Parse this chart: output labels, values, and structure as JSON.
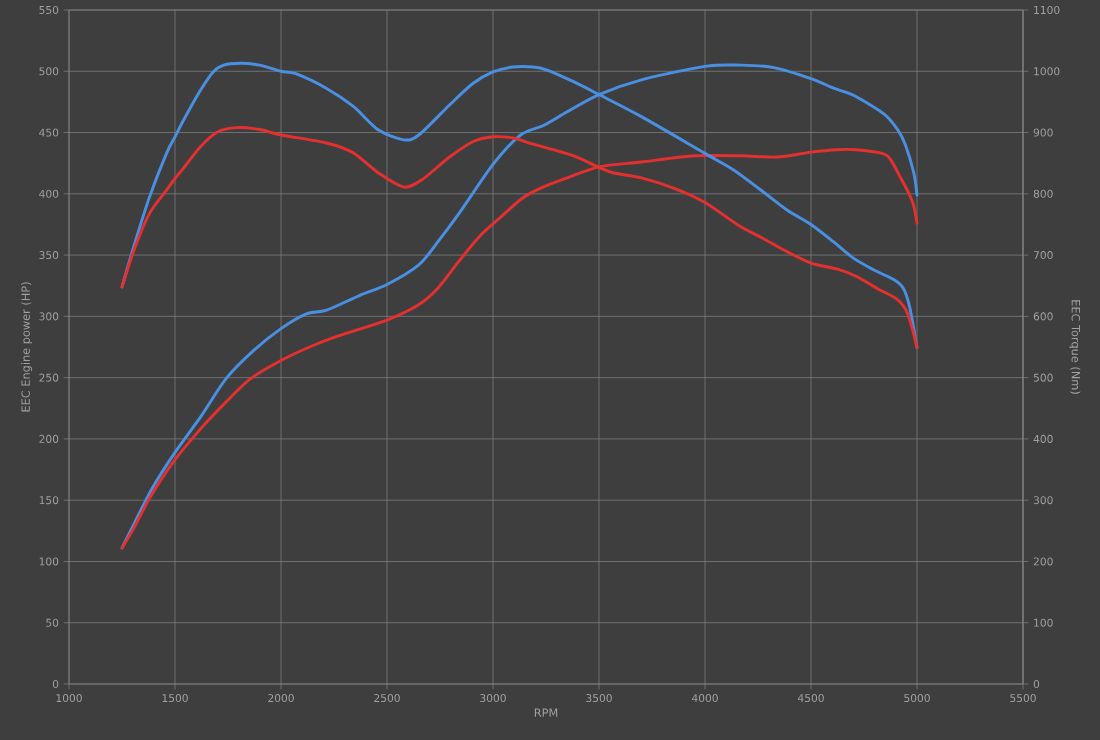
{
  "chart_data": {
    "type": "line",
    "xlabel": "RPM",
    "ylabel": "EEC Engine power (HP)",
    "y2label": "EEC Torque (Nm)",
    "xlim": [
      1000,
      5500
    ],
    "xticks": [
      1000,
      1500,
      2000,
      2500,
      3000,
      3500,
      4000,
      4500,
      5000,
      5500
    ],
    "ylim": [
      0,
      550
    ],
    "yticks": [
      0,
      50,
      100,
      150,
      200,
      250,
      300,
      350,
      400,
      450,
      500,
      550
    ],
    "y2lim": [
      0,
      1100
    ],
    "y2ticks": [
      0,
      100,
      200,
      300,
      400,
      500,
      600,
      700,
      800,
      900,
      1000,
      1100
    ],
    "grid": true,
    "series": [
      {
        "color": "#4a90e2",
        "axis": "y",
        "x": [
          1250,
          1305,
          1390,
          1500,
          1625,
          1740,
          1870,
          2000,
          2120,
          2215,
          2370,
          2500,
          2650,
          2745,
          2840,
          3000,
          3130,
          3240,
          3350,
          3500,
          3700,
          4000,
          4170,
          4325,
          4500,
          4610,
          4705,
          4845,
          4910,
          4945,
          4985,
          5000
        ],
        "values": [
          111,
          130,
          159,
          189,
          219,
          249,
          272,
          290,
          302,
          305,
          317,
          326,
          342,
          362,
          384,
          424,
          448,
          456,
          467,
          481,
          493,
          504,
          505,
          503,
          494,
          486,
          480,
          465,
          452,
          440,
          417,
          399
        ]
      },
      {
        "color": "#4a90e2",
        "axis": "y2",
        "x": [
          1250,
          1310,
          1380,
          1460,
          1500,
          1540,
          1620,
          1680,
          1730,
          1810,
          1900,
          2000,
          2070,
          2215,
          2340,
          2460,
          2580,
          2650,
          2795,
          2905,
          3000,
          3095,
          3190,
          3255,
          3380,
          3500,
          3700,
          4000,
          4135,
          4260,
          4385,
          4500,
          4605,
          4700,
          4795,
          4890,
          4935,
          4965,
          5000
        ],
        "values": [
          648,
          719,
          795,
          866,
          893,
          920,
          969,
          999,
          1010,
          1013,
          1010,
          1000,
          996,
          972,
          943,
          904,
          888,
          896,
          945,
          980,
          999,
          1007,
          1007,
          1002,
          983,
          962,
          926,
          866,
          839,
          807,
          774,
          750,
          722,
          695,
          676,
          660,
          646,
          616,
          549
        ]
      },
      {
        "color": "#e53030",
        "axis": "y",
        "x": [
          1250,
          1305,
          1385,
          1500,
          1625,
          1740,
          1855,
          2000,
          2135,
          2270,
          2500,
          2645,
          2740,
          2835,
          2935,
          3030,
          3135,
          3230,
          3350,
          3500,
          3700,
          3950,
          4170,
          4340,
          4500,
          4620,
          4710,
          4835,
          4875,
          4920,
          4960,
          4985,
          5000
        ],
        "values": [
          111,
          127,
          153,
          183,
          209,
          230,
          249,
          264,
          275,
          284,
          297,
          309,
          323,
          344,
          365,
          380,
          396,
          405,
          413,
          422,
          426,
          431,
          431,
          430,
          434,
          436,
          436,
          433,
          428,
          414,
          401,
          390,
          376
        ]
      },
      {
        "color": "#e53030",
        "axis": "y2",
        "x": [
          1250,
          1310,
          1380,
          1460,
          1500,
          1540,
          1620,
          1700,
          1790,
          1900,
          2000,
          2215,
          2340,
          2460,
          2580,
          2665,
          2795,
          2905,
          3000,
          3095,
          3190,
          3380,
          3500,
          3570,
          3700,
          3855,
          4000,
          4165,
          4270,
          4385,
          4500,
          4625,
          4715,
          4810,
          4905,
          4955,
          5000
        ],
        "values": [
          648,
          711,
          768,
          806,
          825,
          842,
          877,
          901,
          908,
          905,
          896,
          883,
          867,
          834,
          811,
          823,
          860,
          885,
          893,
          891,
          881,
          862,
          843,
          834,
          826,
          809,
          786,
          747,
          728,
          706,
          687,
          677,
          665,
          646,
          628,
          605,
          549
        ]
      }
    ]
  }
}
